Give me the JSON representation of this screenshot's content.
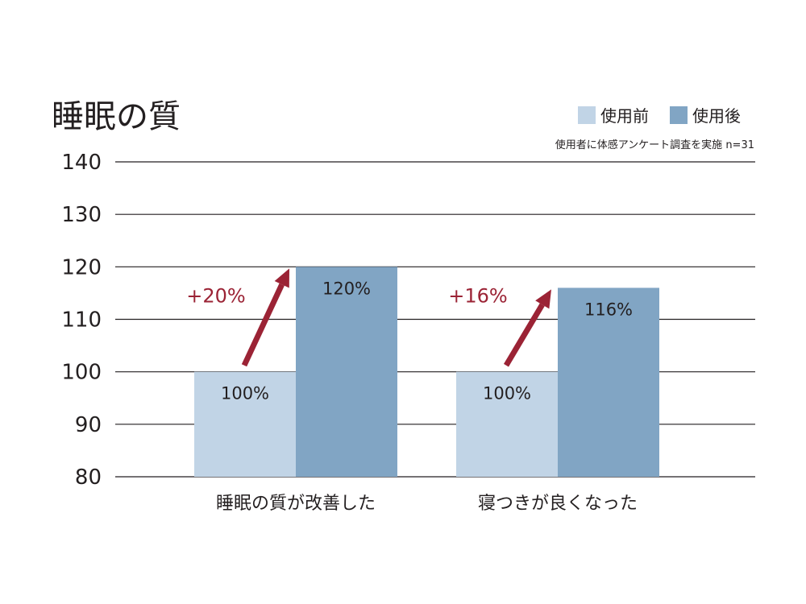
{
  "chart_data": {
    "type": "bar",
    "title": "睡眠の質",
    "note": "使用者に体感アンケート調査を実施 n=31",
    "categories": [
      "睡眠の質が改善した",
      "寝つきが良くなった"
    ],
    "series": [
      {
        "name": "使用前",
        "values": [
          100,
          100
        ],
        "labels": [
          "100%",
          "100%"
        ],
        "color": "#c1d4e6"
      },
      {
        "name": "使用後",
        "values": [
          120,
          116
        ],
        "labels": [
          "120%",
          "116%"
        ],
        "color": "#81a5c4"
      }
    ],
    "increase_labels": [
      "+20%",
      "+16%"
    ],
    "increase_color": "#9b2335",
    "ylim": [
      80,
      140
    ],
    "yticks": [
      80,
      90,
      100,
      110,
      120,
      130,
      140
    ],
    "grid": true,
    "legend_position": "top-right",
    "xlabel": "",
    "ylabel": ""
  }
}
